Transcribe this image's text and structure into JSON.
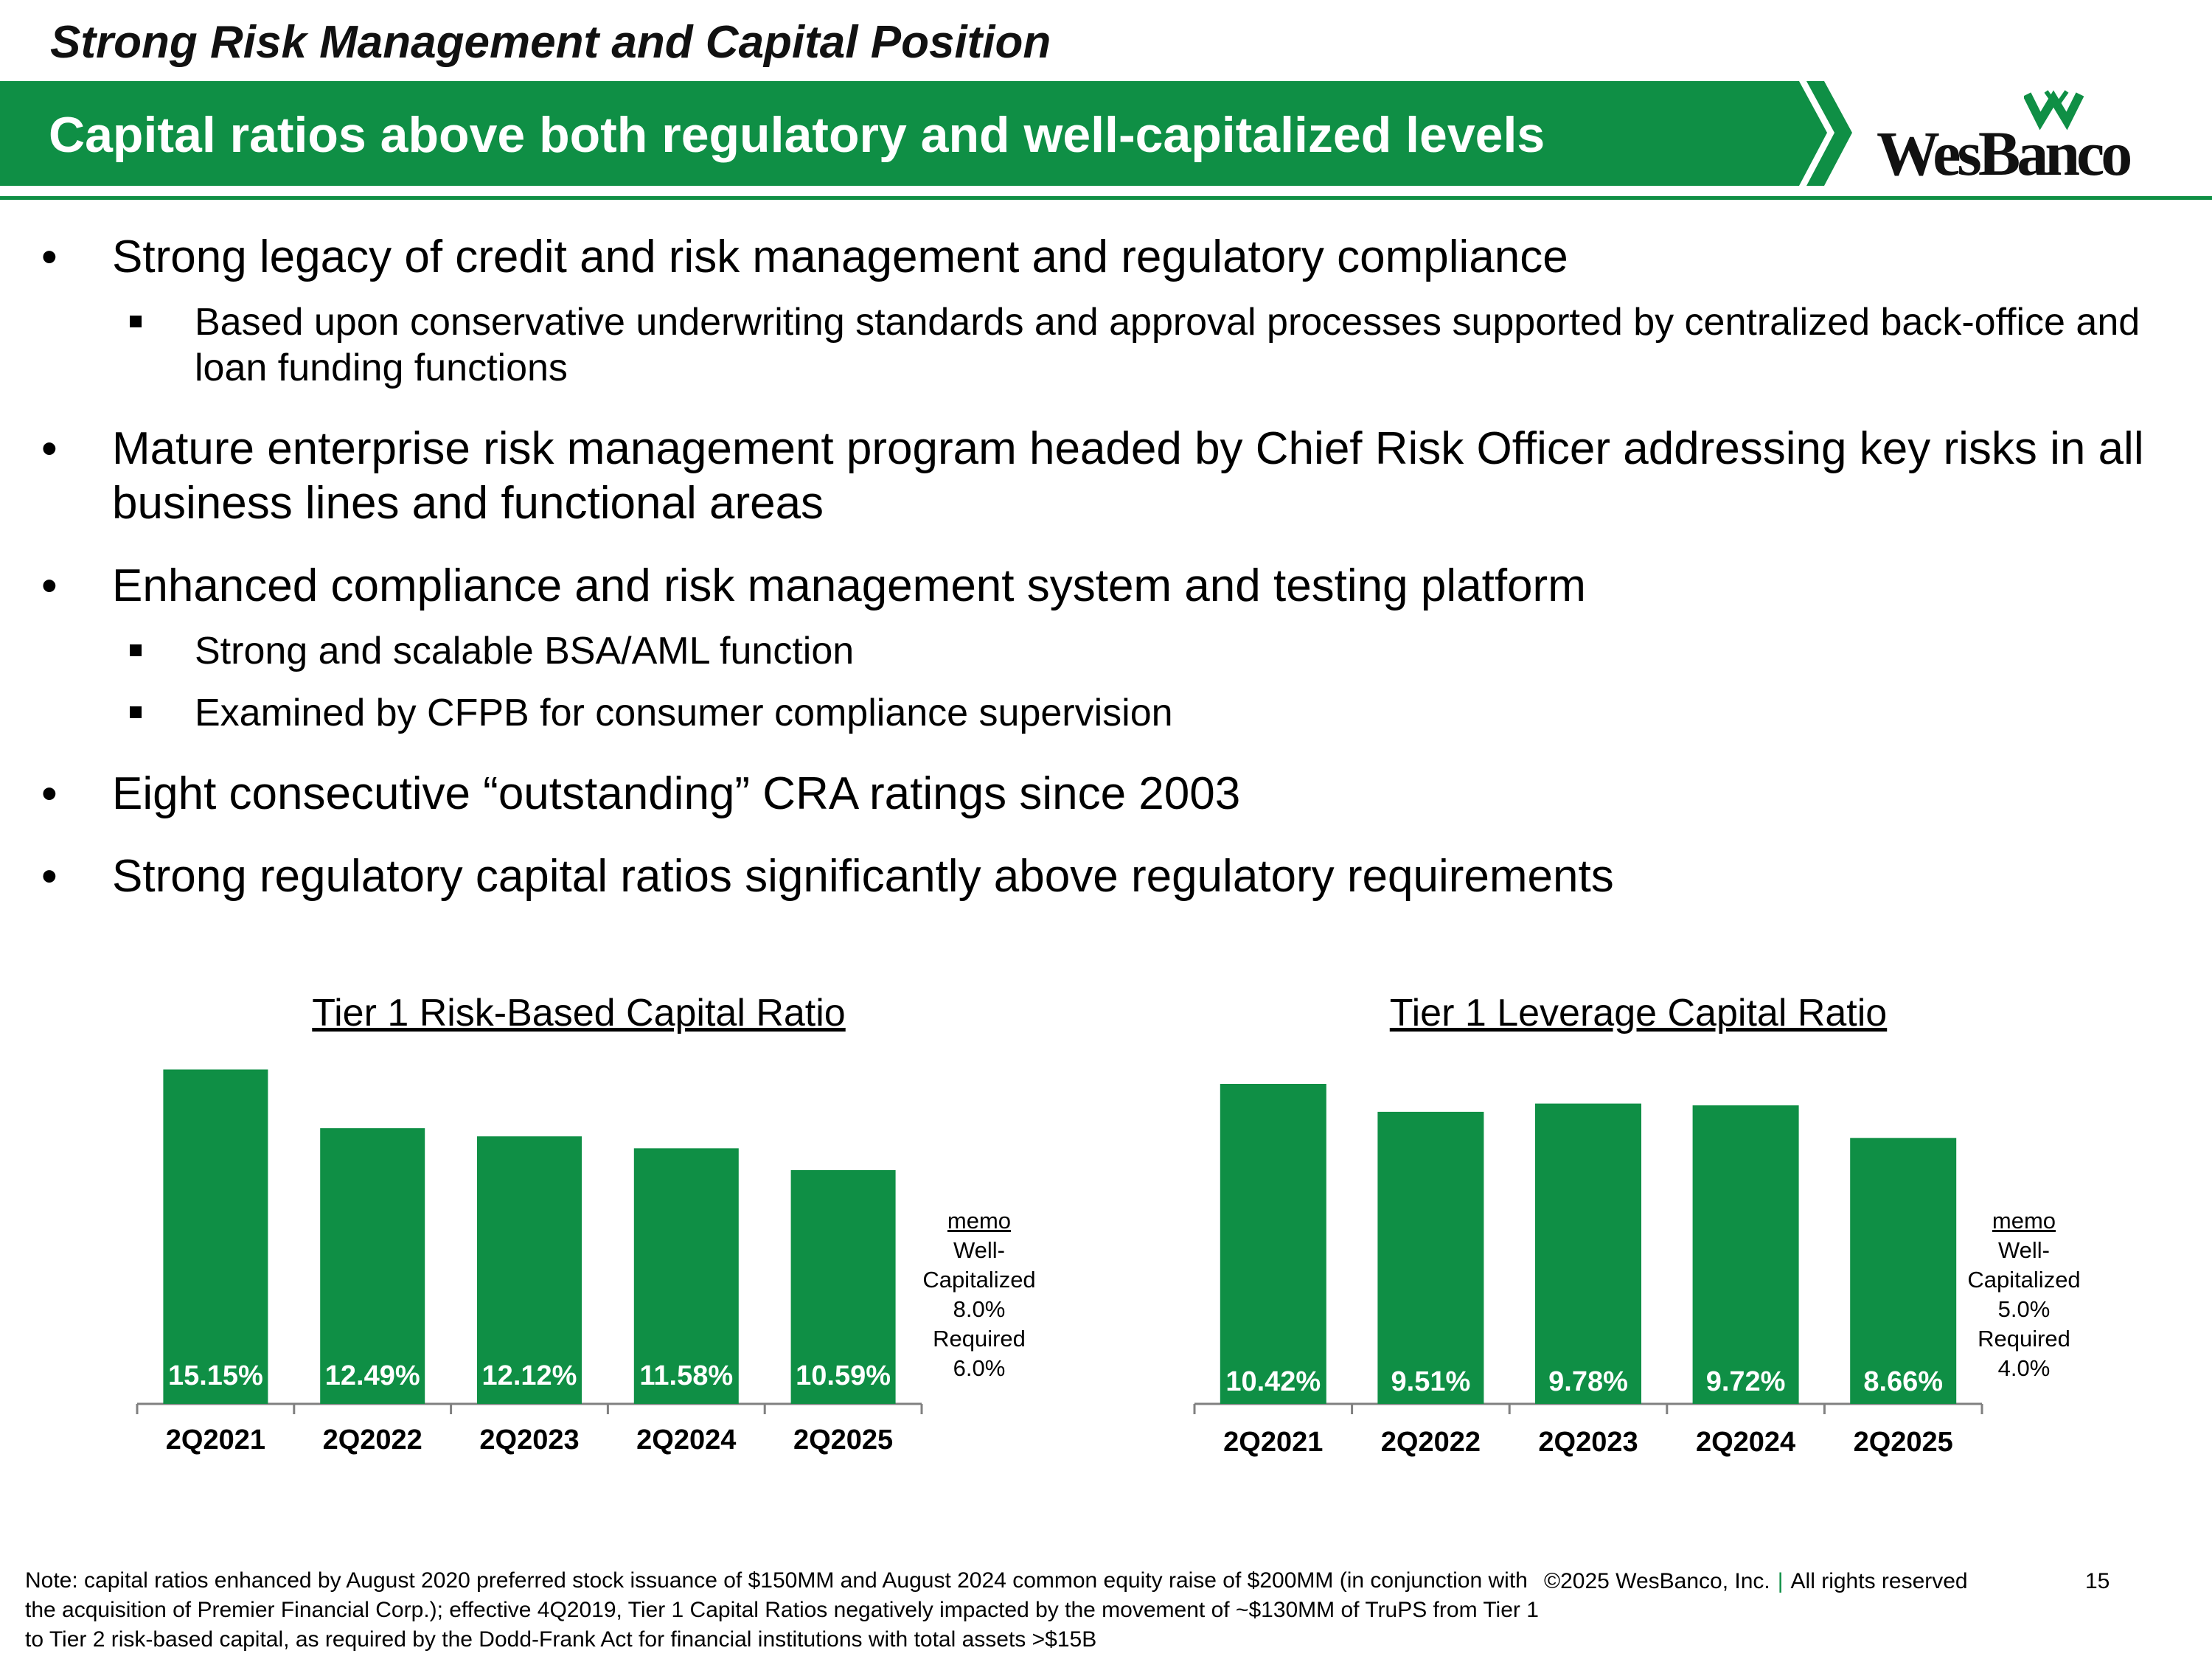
{
  "slide": {
    "kicker": "Strong Risk Management and Capital Position",
    "title": "Capital ratios above both regulatory and well-capitalized levels",
    "logo_text": "WesBanco",
    "brand_color": "#0f8f45"
  },
  "bullets": [
    {
      "text": "Strong legacy of credit and risk management and regulatory compliance",
      "sub": [
        "Based upon conservative underwriting standards and approval processes supported by centralized back-office and loan funding functions"
      ]
    },
    {
      "text": "Mature enterprise risk management program headed by Chief Risk Officer addressing key risks in all business lines and functional areas",
      "sub": []
    },
    {
      "text": "Enhanced compliance and risk management system and testing platform",
      "sub": [
        "Strong and scalable BSA/AML function",
        "Examined by CFPB for consumer compliance supervision"
      ]
    },
    {
      "text": "Eight consecutive “outstanding” CRA ratings since 2003",
      "sub": []
    },
    {
      "text": "Strong regulatory capital ratios significantly above regulatory requirements",
      "sub": []
    }
  ],
  "chart_data": [
    {
      "type": "bar",
      "title": "Tier 1 Risk-Based Capital Ratio",
      "categories": [
        "2Q2021",
        "2Q2022",
        "2Q2023",
        "2Q2024",
        "2Q2025"
      ],
      "values": [
        15.15,
        12.49,
        12.12,
        11.58,
        10.59
      ],
      "data_labels": [
        "15.15%",
        "12.49%",
        "12.12%",
        "11.58%",
        "10.59%"
      ],
      "ylim": [
        0,
        15.5
      ],
      "bar_color": "#0f8f45",
      "memo": {
        "heading": "memo",
        "lines": [
          "Well-",
          "Capitalized",
          "8.0%",
          "Required",
          "6.0%"
        ]
      }
    },
    {
      "type": "bar",
      "title": "Tier 1 Leverage Capital Ratio",
      "categories": [
        "2Q2021",
        "2Q2022",
        "2Q2023",
        "2Q2024",
        "2Q2025"
      ],
      "values": [
        10.42,
        9.51,
        9.78,
        9.72,
        8.66
      ],
      "data_labels": [
        "10.42%",
        "9.51%",
        "9.78%",
        "9.72%",
        "8.66%"
      ],
      "ylim": [
        0,
        10.9
      ],
      "bar_color": "#0f8f45",
      "memo": {
        "heading": "memo",
        "lines": [
          "Well-",
          "Capitalized",
          "5.0%",
          "Required",
          "4.0%"
        ]
      }
    }
  ],
  "footer": {
    "note": "Note: capital ratios enhanced by August 2020 preferred stock issuance of $150MM and August 2024 common equity raise of $200MM (in conjunction with the acquisition of Premier Financial Corp.); effective 4Q2019, Tier 1 Capital Ratios negatively impacted by the movement of ~$130MM of TruPS from Tier 1 to Tier 2 risk-based capital, as required by the Dodd-Frank Act for financial institutions with total assets >$15B",
    "copyright": "©2025 WesBanco, Inc.",
    "separator": "|",
    "rights": "All rights reserved",
    "page_number": "15"
  }
}
